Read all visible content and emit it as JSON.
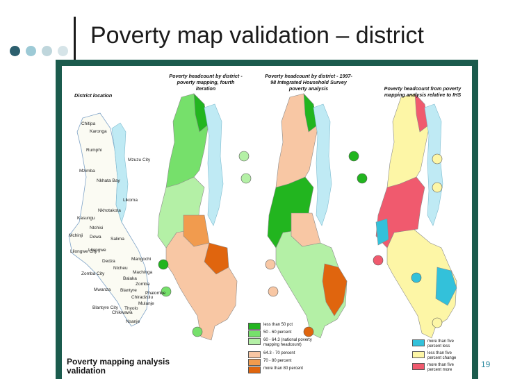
{
  "slide": {
    "title": "Poverty map validation – district",
    "number": "19",
    "dot_colors": [
      "#2c5f6e",
      "#9dcad6",
      "#bfd6dc",
      "#d6e4e8"
    ],
    "frame_color": "#1b5b4d"
  },
  "figure": {
    "captions": {
      "location": "District location",
      "map1": "Poverty headcount by district - poverty mapping, fourth iteration",
      "map2": "Poverty headcount by district - 1997-98 Integrated Household Survey poverty analysis",
      "map3": "Poverty headcount from poverty mapping analysis relative to IHS"
    },
    "district_labels": [
      "Chitipa",
      "Karonga",
      "Rumphi",
      "Mzuzu City",
      "Mzimba",
      "Nkhata Bay",
      "Likoma",
      "Nkhotakota",
      "Kasungu",
      "Ntchisi",
      "Mchinji",
      "Dowa",
      "Salima",
      "Lilongwe City",
      "Lilongwe",
      "Dedza",
      "Mangochi",
      "Ntcheu",
      "Machinga",
      "Zomba City",
      "Balaka",
      "Zomba",
      "Mwanza",
      "Blantyre",
      "Phalombe",
      "Chiradzulu",
      "Mulanje",
      "Thyolo",
      "Blantyre City",
      "Chikwawa",
      "Nsanje"
    ],
    "footer": "Poverty mapping analysis validation",
    "legend_headcount": [
      {
        "label": "less than 50 pct",
        "color": "#22b51f"
      },
      {
        "label": "50 - 60 percent",
        "color": "#76e06b"
      },
      {
        "label": "60 - 64.3 (national poverty mapping headcount)",
        "color": "#b4f0a6"
      },
      {
        "label": "64.3 - 70 percent",
        "color": "#f8c7a4"
      },
      {
        "label": "70 - 80 percent",
        "color": "#f19b4e"
      },
      {
        "label": "more than 80 percent",
        "color": "#e0650e"
      }
    ],
    "legend_relative": [
      {
        "label": "more than five percent less",
        "color": "#33c1da"
      },
      {
        "label": "less than five percent change",
        "color": "#fdf6a6"
      },
      {
        "label": "more than five percent more",
        "color": "#f05a6e"
      }
    ],
    "colors": {
      "lake": "#bfeaf4",
      "boundary": "#8a8a8a"
    }
  }
}
